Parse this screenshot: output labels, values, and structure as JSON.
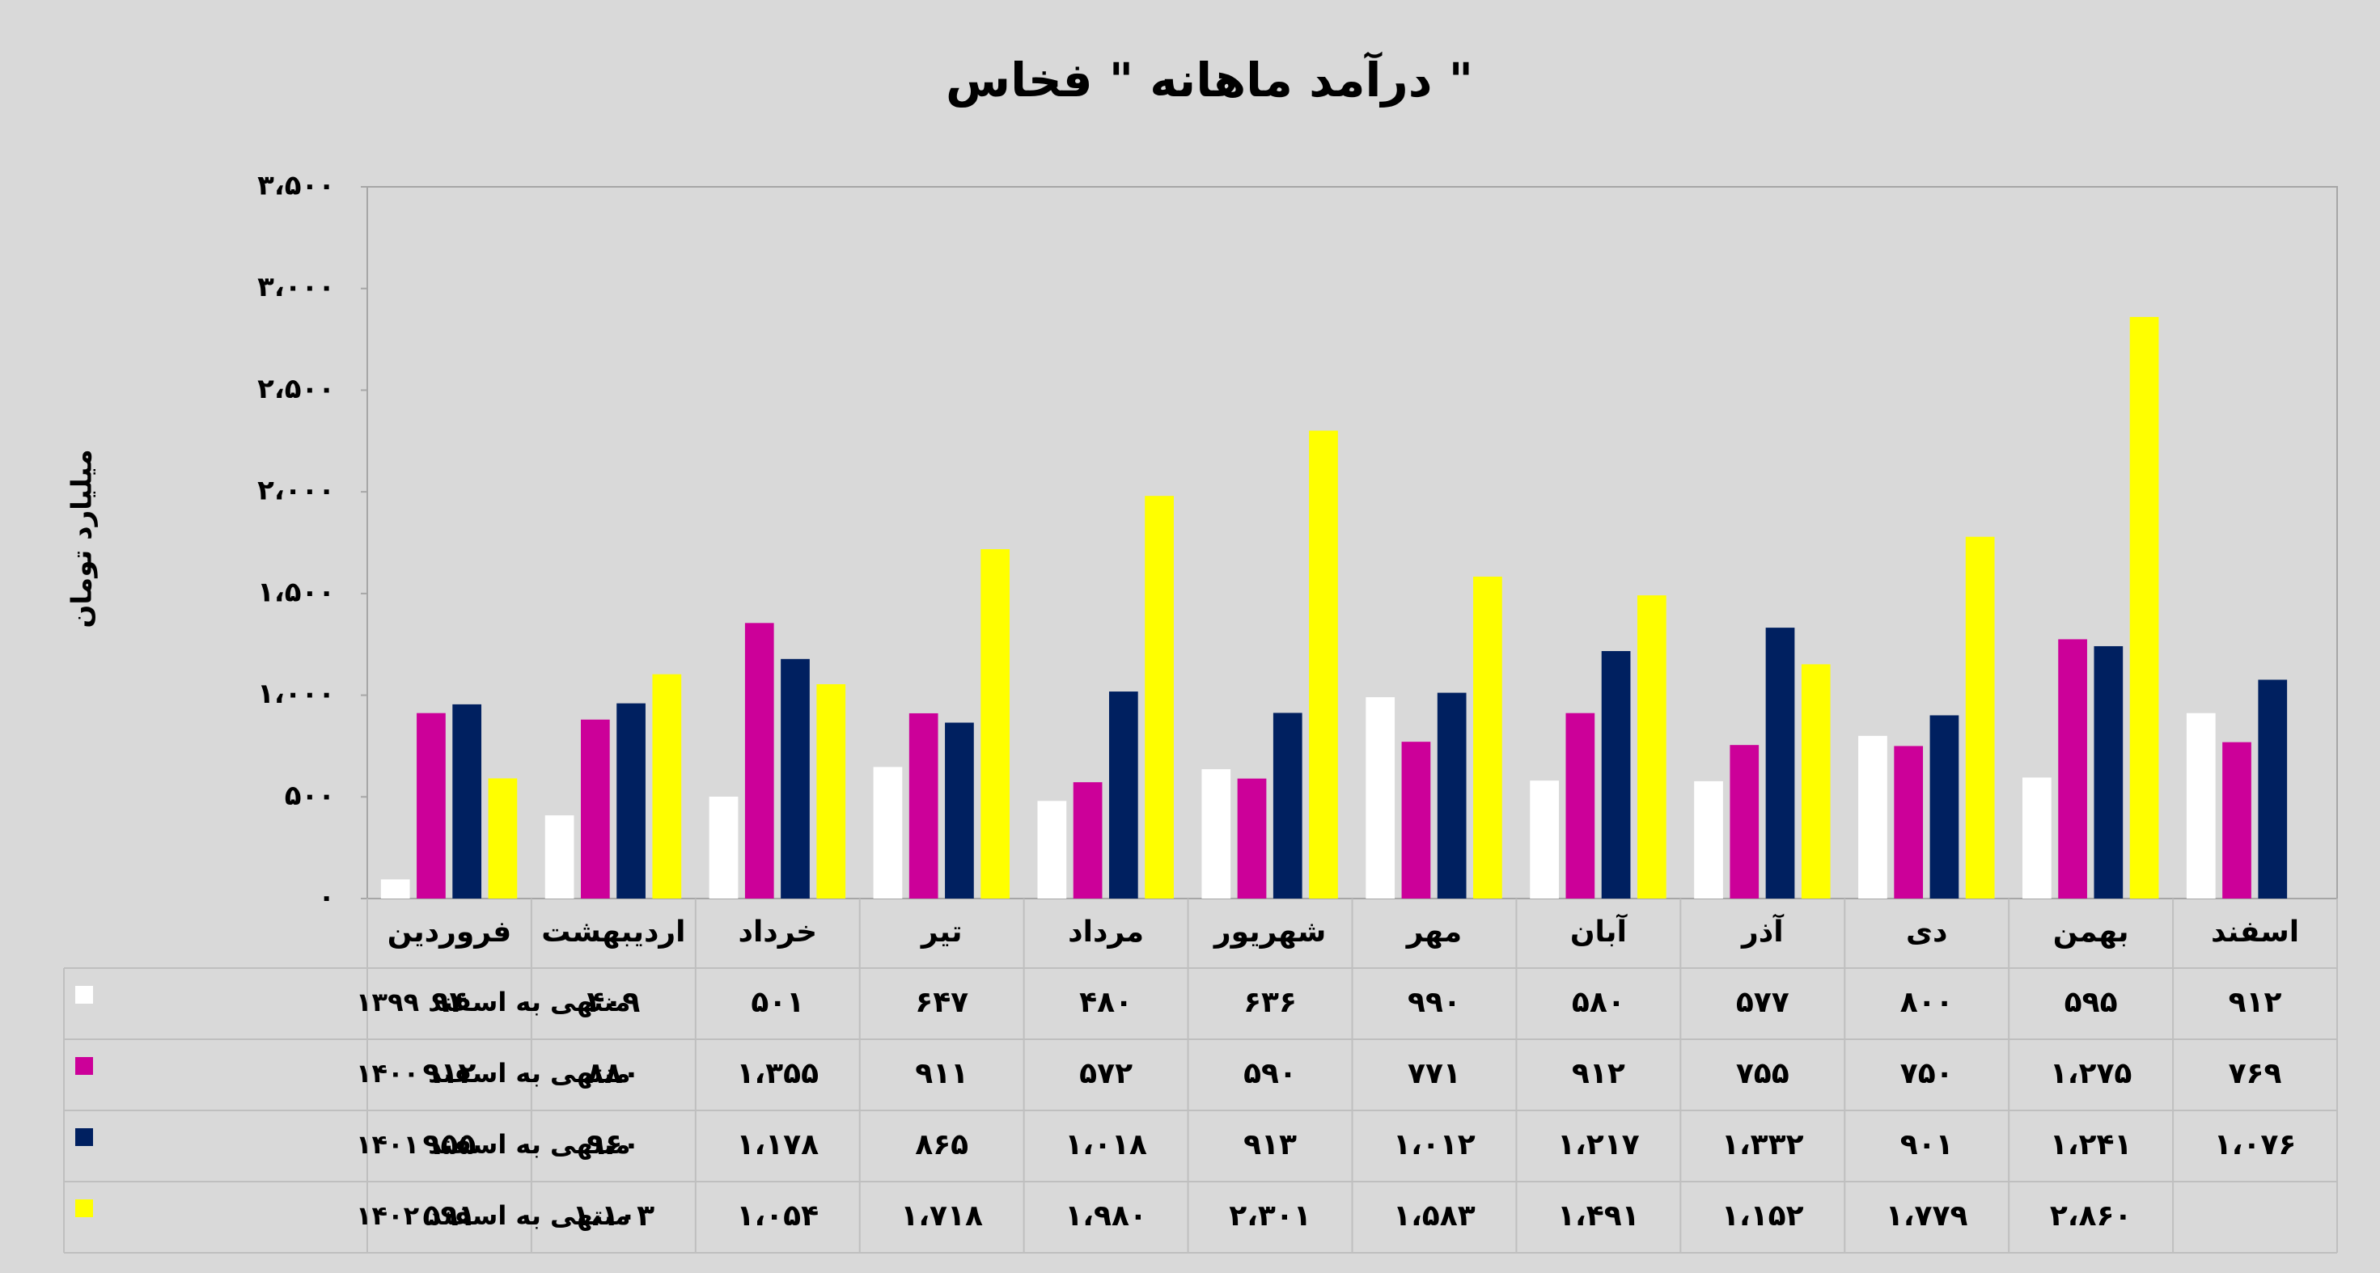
{
  "chart_data": {
    "type": "bar",
    "title": "درآمد ماهانه \" فخاس \"",
    "y_label": "میلیارد تومان",
    "categories": [
      "فروردین",
      "اردیبهشت",
      "خرداد",
      "تیر",
      "مرداد",
      "شهریور",
      "مهر",
      "آبان",
      "آذر",
      "دی",
      "بهمن",
      "اسفند"
    ],
    "series": [
      {
        "name": "منتهی به اسفند ۱۳۹۹",
        "color": "#ffffff",
        "values": [
          94,
          409,
          501,
          647,
          480,
          636,
          990,
          580,
          577,
          800,
          595,
          912
        ],
        "value_labels": [
          "۹۴",
          "۴۰۹",
          "۵۰۱",
          "۶۴۷",
          "۴۸۰",
          "۶۳۶",
          "۹۹۰",
          "۵۸۰",
          "۵۷۷",
          "۸۰۰",
          "۵۹۵",
          "۹۱۲"
        ]
      },
      {
        "name": "منتهی به اسفند ۱۴۰۰",
        "color": "#cc0099",
        "values": [
          912,
          880,
          1355,
          911,
          572,
          590,
          771,
          912,
          755,
          750,
          1275,
          769
        ],
        "value_labels": [
          "۹۱۲",
          "۸۸۰",
          "۱،۳۵۵",
          "۹۱۱",
          "۵۷۲",
          "۵۹۰",
          "۷۷۱",
          "۹۱۲",
          "۷۵۵",
          "۷۵۰",
          "۱،۲۷۵",
          "۷۶۹"
        ]
      },
      {
        "name": "منتهی به اسفند ۱۴۰۱",
        "color": "#002060",
        "values": [
          955,
          960,
          1178,
          865,
          1018,
          913,
          1012,
          1217,
          1332,
          901,
          1241,
          1076
        ],
        "value_labels": [
          "۹۵۵",
          "۹۶۰",
          "۱،۱۷۸",
          "۸۶۵",
          "۱،۰۱۸",
          "۹۱۳",
          "۱،۰۱۲",
          "۱،۲۱۷",
          "۱،۳۳۲",
          "۹۰۱",
          "۱،۲۴۱",
          "۱،۰۷۶"
        ]
      },
      {
        "name": "منتهی به اسفند ۱۴۰۲",
        "color": "#ffff00",
        "values": [
          591,
          1103,
          1054,
          1718,
          1980,
          2301,
          1583,
          1491,
          1152,
          1779,
          2860,
          null
        ],
        "value_labels": [
          "۵۹۱",
          "۱،۱۰۳",
          "۱،۰۵۴",
          "۱،۷۱۸",
          "۱،۹۸۰",
          "۲،۳۰۱",
          "۱،۵۸۳",
          "۱،۴۹۱",
          "۱،۱۵۲",
          "۱،۷۷۹",
          "۲،۸۶۰",
          null
        ]
      }
    ],
    "ylim": [
      0,
      3500
    ],
    "yticks": [
      {
        "value": 0,
        "label": "۰"
      },
      {
        "value": 500,
        "label": "۵۰۰"
      },
      {
        "value": 1000,
        "label": "۱،۰۰۰"
      },
      {
        "value": 1500,
        "label": "۱،۵۰۰"
      },
      {
        "value": 2000,
        "label": "۲،۰۰۰"
      },
      {
        "value": 2500,
        "label": "۲،۵۰۰"
      },
      {
        "value": 3000,
        "label": "۳،۰۰۰"
      },
      {
        "value": 3500,
        "label": "۳،۵۰۰"
      }
    ],
    "grid": false
  }
}
